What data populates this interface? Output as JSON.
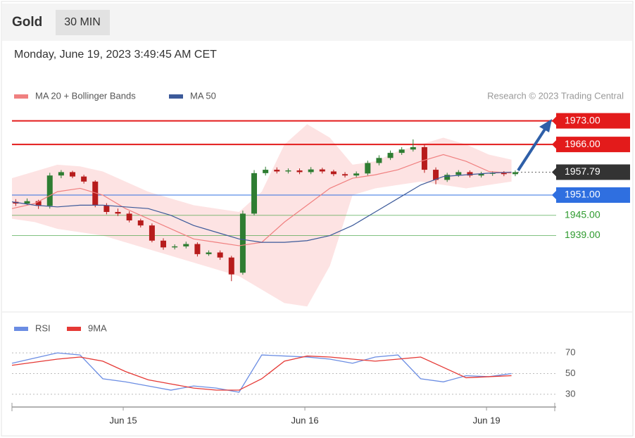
{
  "header": {
    "title": "Gold",
    "interval": "30 MIN",
    "timestamp": "Monday, June 19, 2023 3:49:45 AM CET"
  },
  "chart_data": [
    {
      "type": "candlestick",
      "credit": "Research © 2023 Trading Central",
      "xlim": [
        0,
        71.9
      ],
      "ylim": [
        1917,
        1977.5
      ],
      "candles": {
        "up_color": "#2e7d32",
        "down_color": "#b71c1c",
        "x": [
          0.5,
          2,
          3.5,
          5,
          6.5,
          8,
          9.5,
          11,
          12.5,
          14,
          15.5,
          17,
          18.5,
          20,
          21.5,
          23,
          24.5,
          26,
          27.5,
          29,
          30.5,
          32,
          33.5,
          35,
          36.5,
          38,
          39.5,
          41,
          42.5,
          44,
          45.5,
          47,
          48.5,
          50,
          51.5,
          53,
          54.5,
          56,
          57.5,
          59,
          60.5,
          62,
          63.5,
          65,
          66.5
        ],
        "open": [
          1949,
          1948.5,
          1949.2,
          1947.8,
          1956.8,
          1957.8,
          1956.5,
          1955,
          1948,
          1946,
          1945.5,
          1943.5,
          1942,
          1937.5,
          1935.5,
          1935.8,
          1936.5,
          1933.5,
          1934,
          1932.5,
          1928,
          1945.5,
          1957.5,
          1958.5,
          1958,
          1958.3,
          1957.8,
          1958.6,
          1958,
          1957.2,
          1956.8,
          1957.4,
          1960.5,
          1962,
          1963.5,
          1964.5,
          1965.2,
          1958.5,
          1955.5,
          1957,
          1957.8,
          1956.8,
          1957.3,
          1957.6,
          1957.2
        ],
        "high": [
          1949.8,
          1950,
          1949.6,
          1957.6,
          1958.4,
          1958.2,
          1957,
          1955.4,
          1948.6,
          1947,
          1946.2,
          1944,
          1942.6,
          1938.2,
          1936.4,
          1937.2,
          1937,
          1934.6,
          1934.6,
          1933,
          1946.4,
          1958.4,
          1959.4,
          1959.2,
          1958.9,
          1958.9,
          1959.3,
          1959.1,
          1958.5,
          1957.8,
          1958,
          1961.2,
          1962.8,
          1964.2,
          1965.2,
          1967.5,
          1966,
          1959.2,
          1957.6,
          1958.4,
          1958.3,
          1957.9,
          1958.1,
          1958.1,
          1958.3
        ],
        "low": [
          1947.8,
          1948,
          1946.9,
          1947,
          1956,
          1956,
          1954.4,
          1947.4,
          1945.3,
          1944.8,
          1942.9,
          1941.4,
          1937,
          1934.8,
          1934.9,
          1935.2,
          1932.8,
          1933,
          1931.8,
          1925.5,
          1927.4,
          1945,
          1956.8,
          1957.4,
          1957.4,
          1957.2,
          1957.2,
          1957.4,
          1956.6,
          1956.2,
          1956.3,
          1956.8,
          1959.8,
          1961.4,
          1962.9,
          1963.9,
          1957.6,
          1954.2,
          1954.9,
          1956.4,
          1956.2,
          1956.2,
          1956.7,
          1956.6,
          1956.6
        ],
        "close": [
          1948.5,
          1949.2,
          1947.8,
          1956.8,
          1957.8,
          1956.5,
          1955,
          1948,
          1946,
          1945.5,
          1943.5,
          1942,
          1937.5,
          1935.5,
          1935.8,
          1936.5,
          1933.5,
          1934,
          1932.5,
          1927.5,
          1945.5,
          1957.5,
          1958.5,
          1958,
          1958.3,
          1957.8,
          1958.6,
          1958,
          1957.2,
          1956.8,
          1957.4,
          1960.5,
          1962,
          1963.5,
          1964.5,
          1965.2,
          1958.5,
          1955.5,
          1957,
          1957.8,
          1956.8,
          1957.3,
          1957.6,
          1957.2,
          1957.79
        ]
      },
      "x": [
        0,
        3,
        6,
        9,
        12,
        15,
        18,
        21,
        24,
        27,
        30,
        33,
        36,
        39,
        42,
        45,
        48,
        51,
        54,
        57,
        60,
        63,
        66
      ],
      "series": [
        {
          "name": "MA 20 + Bollinger Bands",
          "color": "#f08080",
          "band_color": "#fde3e3",
          "values": [
            1947,
            1948.5,
            1952,
            1953,
            1951,
            1947,
            1944,
            1941,
            1938,
            1937,
            1936,
            1937,
            1943,
            1948,
            1953,
            1956,
            1957,
            1958.5,
            1961,
            1963,
            1961,
            1958,
            1957.5
          ],
          "upper": [
            1956,
            1958,
            1960,
            1959.5,
            1958,
            1955,
            1952,
            1950,
            1948,
            1947,
            1946,
            1952,
            1966,
            1972,
            1968,
            1960,
            1961,
            1964,
            1966,
            1968,
            1966,
            1963,
            1961.5
          ],
          "lower": [
            1944,
            1943,
            1941,
            1940,
            1939,
            1937,
            1935,
            1933,
            1931,
            1929,
            1927,
            1923,
            1919,
            1918,
            1930,
            1951,
            1953,
            1954,
            1955,
            1954,
            1953,
            1954,
            1955
          ]
        },
        {
          "name": "MA 50",
          "color": "#3c5a9a",
          "values": [
            1949,
            1948,
            1947.5,
            1948,
            1948,
            1947.5,
            1947,
            1945,
            1942,
            1940,
            1938,
            1937,
            1937,
            1937.5,
            1939,
            1942,
            1946,
            1950,
            1954,
            1956.5,
            1957,
            1957.5,
            1957.8
          ]
        }
      ],
      "levels": [
        {
          "value": 1973,
          "label": "1973.00",
          "color": "#e31b1b",
          "style": "box"
        },
        {
          "value": 1966,
          "label": "1966.00",
          "color": "#e31b1b",
          "style": "box"
        },
        {
          "value": 1957.79,
          "color": "#333333",
          "style": "box",
          "dash": true
        },
        {
          "value": 1951,
          "label": "1951.00",
          "color": "#2f6fe0",
          "style": "box"
        },
        {
          "value": 1945,
          "label": "1945.00",
          "color": "#2e9a2e",
          "style": "text"
        },
        {
          "value": 1939,
          "label": "1939.00",
          "color": "#2e9a2e",
          "style": "text"
        }
      ]
    },
    {
      "type": "line",
      "xlim": [
        0,
        71.9
      ],
      "ylim": [
        17,
        81
      ],
      "yticks": [
        30,
        50,
        70
      ],
      "grid": true,
      "xticks": [
        {
          "value": 14.7,
          "label": "Jun 15"
        },
        {
          "value": 38.7,
          "label": "Jun 16"
        },
        {
          "value": 62.7,
          "label": "Jun 19"
        }
      ],
      "x": [
        0,
        3,
        6,
        9,
        12,
        15,
        18,
        21,
        24,
        27,
        30,
        33,
        36,
        39,
        42,
        45,
        48,
        51,
        54,
        57,
        60,
        63,
        66
      ],
      "series": [
        {
          "name": "RSI",
          "color": "#6b8de3",
          "values": [
            60,
            65,
            70,
            68,
            45,
            42,
            38,
            34,
            38,
            36,
            32,
            68,
            67,
            66,
            64,
            60,
            66,
            68,
            45,
            42,
            48,
            47,
            50
          ]
        },
        {
          "name": "9MA",
          "color": "#e53935",
          "values": [
            58,
            61,
            64,
            66,
            62,
            52,
            44,
            40,
            36,
            34,
            34,
            45,
            62,
            67,
            66,
            64,
            62,
            64,
            66,
            56,
            46,
            47,
            48
          ]
        }
      ]
    }
  ]
}
